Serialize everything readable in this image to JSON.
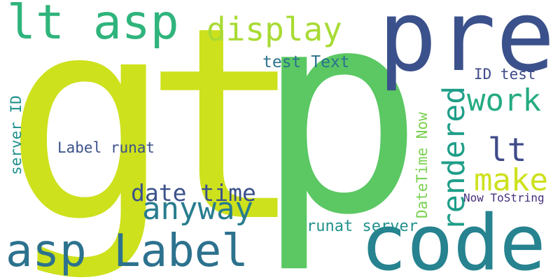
{
  "words": [
    {
      "text": "g",
      "color": "#cde11d",
      "rotate": false
    },
    {
      "text": "p",
      "color": "#5bc863",
      "rotate": false
    },
    {
      "text": "t",
      "color": "#cde11d",
      "rotate": false
    },
    {
      "text": "pre",
      "color": "#3b518b",
      "rotate": false
    },
    {
      "text": "code",
      "color": "#26838f",
      "rotate": false
    },
    {
      "text": "lt asp",
      "color": "#2fb47c",
      "rotate": false
    },
    {
      "text": "asp Label",
      "color": "#2c728e",
      "rotate": false
    },
    {
      "text": "display",
      "color": "#a8db34",
      "rotate": false
    },
    {
      "text": "anyway",
      "color": "#287c8e",
      "rotate": false
    },
    {
      "text": "date time",
      "color": "#3b518b",
      "rotate": false
    },
    {
      "text": "work",
      "color": "#25ab82",
      "rotate": false
    },
    {
      "text": "lt",
      "color": "#3e4a89",
      "rotate": false
    },
    {
      "text": "make",
      "color": "#cde11d",
      "rotate": false
    },
    {
      "text": "rendered",
      "color": "#1f9e89",
      "rotate": true
    },
    {
      "text": "test Text",
      "color": "#2c728e",
      "rotate": false
    },
    {
      "text": "ID test",
      "color": "#3e4a89",
      "rotate": false
    },
    {
      "text": "Label runat",
      "color": "#3b518b",
      "rotate": false
    },
    {
      "text": "server ID",
      "color": "#21918c",
      "rotate": true
    },
    {
      "text": "DateTime Now",
      "color": "#7ad151",
      "rotate": true
    },
    {
      "text": "runat server",
      "color": "#21918c",
      "rotate": false
    },
    {
      "text": "Now ToString",
      "color": "#472f7d",
      "rotate": false
    }
  ]
}
